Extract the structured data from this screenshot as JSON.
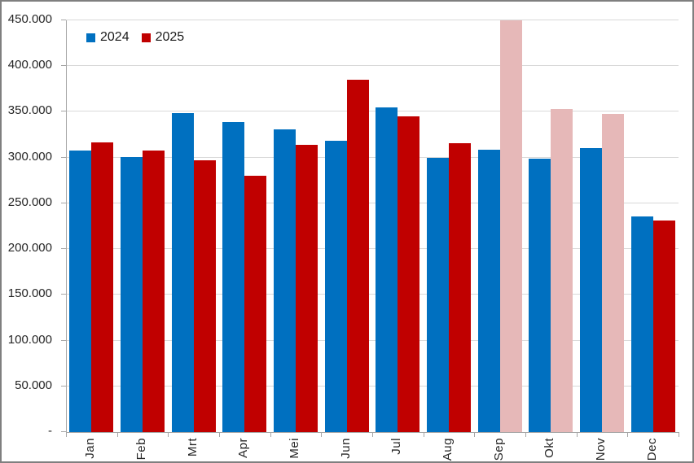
{
  "chart_data": {
    "type": "bar",
    "title": "",
    "xlabel": "",
    "ylabel": "",
    "categories": [
      "Jan",
      "Feb",
      "Mrt",
      "Apr",
      "Mei",
      "Jun",
      "Jul",
      "Aug",
      "Sep",
      "Okt",
      "Nov",
      "Dec"
    ],
    "series": [
      {
        "name": "2024",
        "color": "#0070c0",
        "values": [
          308000,
          301000,
          349000,
          339000,
          331000,
          318000,
          355000,
          300000,
          309000,
          299000,
          310000,
          236000
        ]
      },
      {
        "name": "2025",
        "color": "#c00000",
        "muted_color": "#e6b8b8",
        "muted_categories": [
          "Sep",
          "Okt",
          "Nov"
        ],
        "values": [
          317000,
          308000,
          297000,
          280000,
          314000,
          385000,
          345000,
          316000,
          450000,
          353000,
          348000,
          231000
        ]
      }
    ],
    "ylim": [
      0,
      450000
    ],
    "ytick_step": 50000,
    "ytick_labels": [
      "-",
      "50.000",
      "100.000",
      "150.000",
      "200.000",
      "250.000",
      "300.000",
      "350.000",
      "400.000",
      "450.000"
    ],
    "grid": true,
    "legend_position": "top-left-inside"
  },
  "legend": {
    "items": [
      {
        "label": "2024",
        "color": "#0070c0"
      },
      {
        "label": "2025",
        "color": "#c00000"
      }
    ]
  },
  "colors": {
    "gridline": "#d9d9d9",
    "axis": "#a6a6a6",
    "text": "#262626",
    "frame_border": "#7f7f7f",
    "background": "#ffffff"
  }
}
